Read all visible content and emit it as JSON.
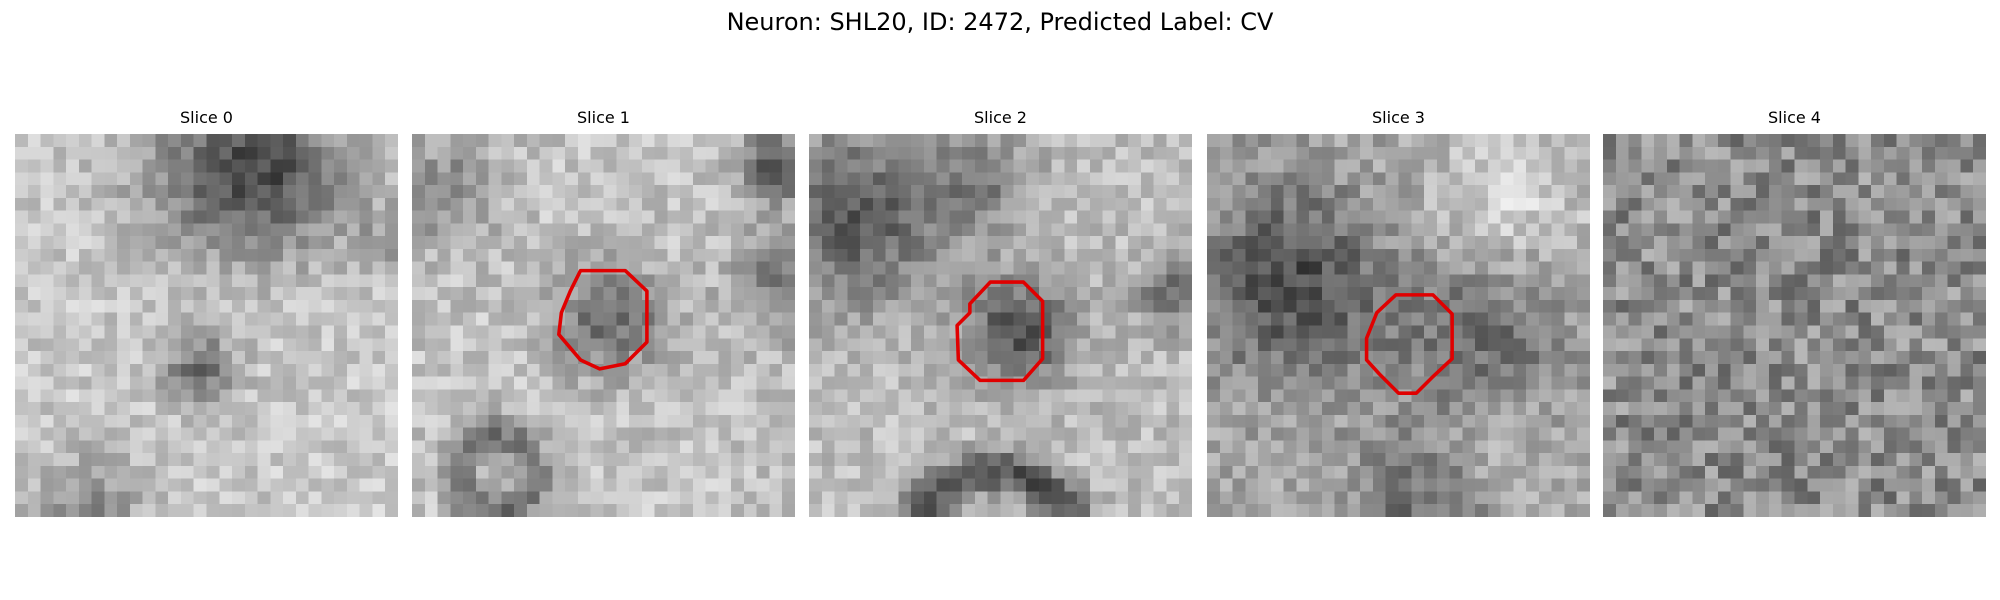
{
  "title": "Neuron: SHL20, ID: 2472, Predicted Label: CV",
  "panels": [
    {
      "title": "Slice 0"
    },
    {
      "title": "Slice 1"
    },
    {
      "title": "Slice 2"
    },
    {
      "title": "Slice 3"
    },
    {
      "title": "Slice 4"
    }
  ]
}
